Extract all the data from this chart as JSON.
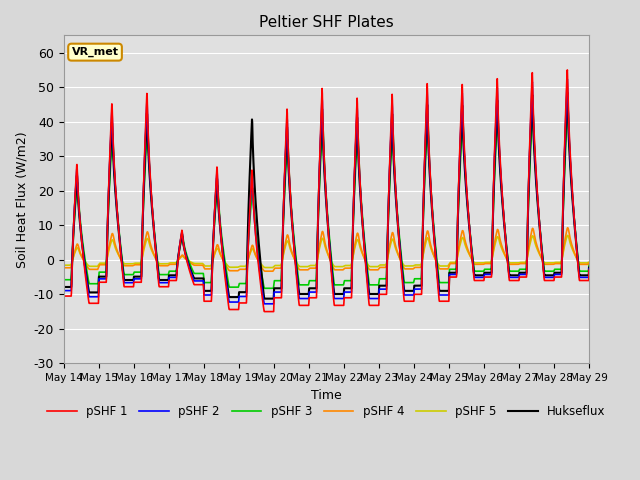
{
  "title": "Peltier SHF Plates",
  "xlabel": "Time",
  "ylabel": "Soil Heat Flux (W/m2)",
  "ylim": [
    -30,
    65
  ],
  "xlim_days": [
    0,
    15
  ],
  "fig_bg_color": "#d8d8d8",
  "plot_bg_color": "#e0e0e0",
  "annotation_text": "VR_met",
  "annotation_bg": "#ffffcc",
  "annotation_border": "#cc8800",
  "series_colors": {
    "pSHF 1": "#ff0000",
    "pSHF 2": "#0000ff",
    "pSHF 3": "#00cc00",
    "pSHF 4": "#ff8800",
    "pSHF 5": "#cccc00",
    "Hukseflux": "#000000"
  },
  "series_linewidths": {
    "pSHF 1": 1.2,
    "pSHF 2": 1.2,
    "pSHF 3": 1.2,
    "pSHF 4": 1.2,
    "pSHF 5": 1.2,
    "Hukseflux": 1.5
  },
  "tick_labels": [
    "May 14",
    "May 15",
    "May 16",
    "May 17",
    "May 18",
    "May 19",
    "May 20",
    "May 21",
    "May 22",
    "May 23",
    "May 24",
    "May 25",
    "May 26",
    "May 27",
    "May 28",
    "May 29"
  ],
  "tick_positions": [
    0,
    1,
    2,
    3,
    4,
    5,
    6,
    7,
    8,
    9,
    10,
    11,
    12,
    13,
    14,
    15
  ],
  "yticks": [
    -30,
    -20,
    -10,
    0,
    10,
    20,
    30,
    40,
    50,
    60
  ],
  "grid_color": "#c8c8c8",
  "legend_entries": [
    "pSHF 1",
    "pSHF 2",
    "pSHF 3",
    "pSHF 4",
    "pSHF 5",
    "Hukseflux"
  ]
}
